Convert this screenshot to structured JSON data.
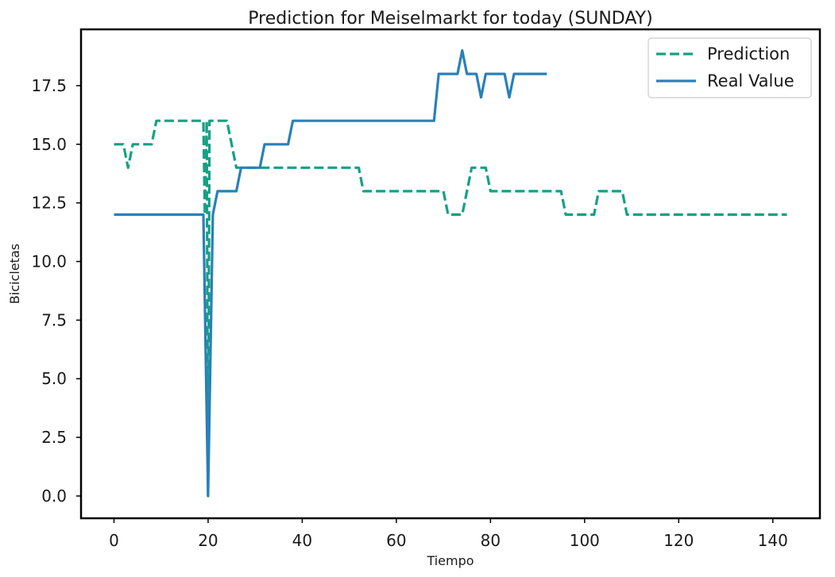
{
  "chart_data": {
    "type": "line",
    "title": "Prediction for Meiselmarkt for today (SUNDAY)",
    "xlabel": "Tiempo",
    "ylabel": "Bicicletas",
    "xlim": [
      -7,
      150
    ],
    "ylim": [
      -0.95,
      19.9
    ],
    "xticks": [
      0,
      20,
      40,
      60,
      80,
      100,
      120,
      140
    ],
    "xtick_labels": [
      "0",
      "20",
      "40",
      "60",
      "80",
      "100",
      "120",
      "140"
    ],
    "yticks": [
      0,
      2.5,
      5,
      7.5,
      10,
      12.5,
      15,
      17.5
    ],
    "ytick_labels": [
      "0.0",
      "2.5",
      "5.0",
      "7.5",
      "10.0",
      "12.5",
      "15.0",
      "17.5"
    ],
    "grid": false,
    "legend_position": "top-right",
    "series": [
      {
        "name": "Prediction",
        "color": "#16a085",
        "style": "dashed",
        "points": [
          [
            0,
            15
          ],
          [
            2,
            15
          ],
          [
            3,
            14
          ],
          [
            4,
            15
          ],
          [
            8,
            15
          ],
          [
            9,
            16
          ],
          [
            19,
            16
          ],
          [
            19.3,
            12
          ],
          [
            19.7,
            16
          ],
          [
            20,
            0
          ],
          [
            20.3,
            16
          ],
          [
            21,
            16
          ],
          [
            24,
            16
          ],
          [
            26,
            14
          ],
          [
            52,
            14
          ],
          [
            53,
            13
          ],
          [
            70,
            13
          ],
          [
            71,
            12
          ],
          [
            74,
            12
          ],
          [
            76,
            14
          ],
          [
            79,
            14
          ],
          [
            80,
            13
          ],
          [
            95,
            13
          ],
          [
            96,
            12
          ],
          [
            102,
            12
          ],
          [
            103,
            13
          ],
          [
            108,
            13
          ],
          [
            109,
            12
          ],
          [
            143,
            12
          ]
        ]
      },
      {
        "name": "Real Value",
        "color": "#2980b9",
        "style": "solid",
        "points": [
          [
            0,
            12
          ],
          [
            19,
            12
          ],
          [
            20,
            0
          ],
          [
            21,
            12
          ],
          [
            22,
            13
          ],
          [
            26,
            13
          ],
          [
            27,
            14
          ],
          [
            31,
            14
          ],
          [
            32,
            15
          ],
          [
            37,
            15
          ],
          [
            38,
            16
          ],
          [
            68,
            16
          ],
          [
            69,
            18
          ],
          [
            73,
            18
          ],
          [
            74,
            19
          ],
          [
            75,
            18
          ],
          [
            77,
            18
          ],
          [
            78,
            17
          ],
          [
            79,
            18
          ],
          [
            83,
            18
          ],
          [
            84,
            17
          ],
          [
            85,
            18
          ],
          [
            92,
            18
          ]
        ]
      }
    ]
  }
}
